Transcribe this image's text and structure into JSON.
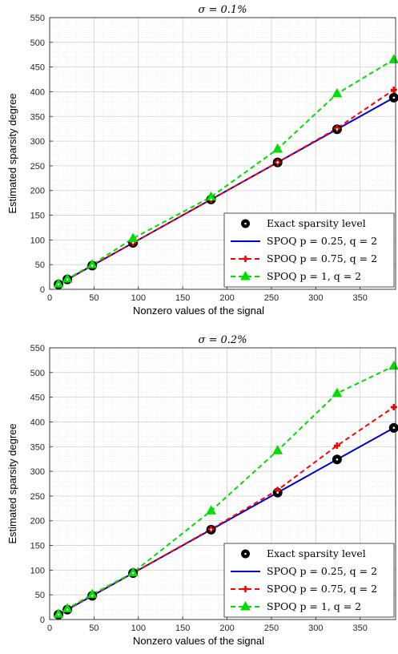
{
  "chart_data": [
    {
      "type": "line",
      "title": "σ = 0.1%",
      "xlabel": "Nonzero values of the signal",
      "ylabel": "Estimated sparsity degree",
      "xlim": [
        0,
        390
      ],
      "ylim": [
        0,
        550
      ],
      "xticks": [
        0,
        50,
        100,
        150,
        200,
        250,
        300,
        350
      ],
      "yticks": [
        0,
        50,
        100,
        150,
        200,
        250,
        300,
        350,
        400,
        450,
        500,
        550
      ],
      "grid": true,
      "legend_position": "bottom-right",
      "x": [
        10,
        20,
        48,
        94,
        182,
        257,
        324,
        388
      ],
      "series": [
        {
          "name": "Exact sparsity level",
          "values": [
            10,
            20,
            48,
            94,
            182,
            257,
            324,
            388
          ],
          "color": "#000000",
          "style": "marker-circle"
        },
        {
          "name": "SPOQ p = 0.25, q = 2",
          "values": [
            10,
            20,
            48,
            94,
            182,
            257,
            324,
            388
          ],
          "color": "#0000cc",
          "style": "solid"
        },
        {
          "name": "SPOQ p = 0.75, q = 2",
          "values": [
            10,
            20,
            48,
            94,
            182,
            257,
            326,
            404
          ],
          "color": "#ff0000",
          "style": "dashed-plus"
        },
        {
          "name": "SPOQ p = 1, q = 2",
          "values": [
            11,
            21,
            50,
            103,
            187,
            284,
            396,
            465
          ],
          "color": "#00dd00",
          "style": "dashed-triangle"
        }
      ]
    },
    {
      "type": "line",
      "title": "σ = 0.2%",
      "xlabel": "Nonzero values of the signal",
      "ylabel": "Estimated sparsity degree",
      "xlim": [
        0,
        390
      ],
      "ylim": [
        0,
        550
      ],
      "xticks": [
        0,
        50,
        100,
        150,
        200,
        250,
        300,
        350
      ],
      "yticks": [
        0,
        50,
        100,
        150,
        200,
        250,
        300,
        350,
        400,
        450,
        500,
        550
      ],
      "grid": true,
      "legend_position": "bottom-right",
      "x": [
        10,
        20,
        48,
        94,
        182,
        257,
        324,
        388
      ],
      "series": [
        {
          "name": "Exact sparsity level",
          "values": [
            10,
            20,
            48,
            94,
            182,
            257,
            324,
            388
          ],
          "color": "#000000",
          "style": "marker-circle"
        },
        {
          "name": "SPOQ p = 0.25, q = 2",
          "values": [
            10,
            20,
            48,
            94,
            182,
            257,
            324,
            388
          ],
          "color": "#0000cc",
          "style": "solid"
        },
        {
          "name": "SPOQ p = 0.75, q = 2",
          "values": [
            10,
            21,
            49,
            94,
            183,
            262,
            352,
            430
          ],
          "color": "#ff0000",
          "style": "dashed-plus"
        },
        {
          "name": "SPOQ p = 1, q = 2",
          "values": [
            11,
            22,
            51,
            95,
            220,
            342,
            458,
            513
          ],
          "color": "#00dd00",
          "style": "dashed-triangle"
        }
      ]
    }
  ]
}
